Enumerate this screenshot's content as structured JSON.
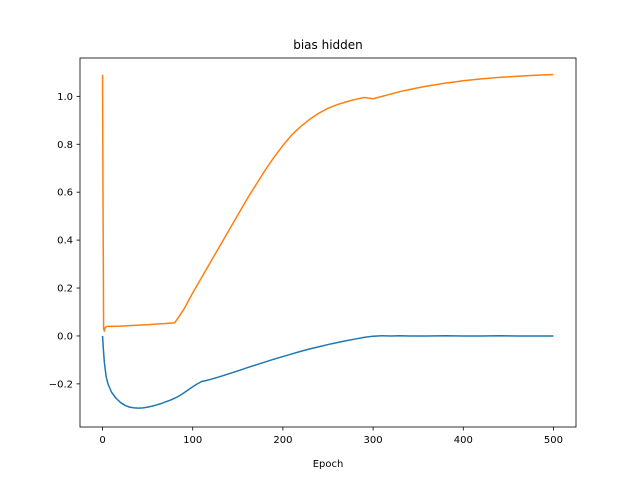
{
  "chart_data": {
    "type": "line",
    "title": "bias hidden",
    "xlabel": "Epoch",
    "ylabel": "",
    "xlim": [
      -25,
      525
    ],
    "ylim": [
      -0.38,
      1.16
    ],
    "xticks": [
      0,
      100,
      200,
      300,
      400,
      500
    ],
    "xtick_labels": [
      "0",
      "100",
      "200",
      "300",
      "400",
      "500"
    ],
    "yticks": [
      -0.2,
      0.0,
      0.2,
      0.4,
      0.6,
      0.8,
      1.0
    ],
    "ytick_labels": [
      "−0.2",
      "0.0",
      "0.2",
      "0.4",
      "0.6",
      "0.8",
      "1.0"
    ],
    "grid": false,
    "series": [
      {
        "color": "#1f77b4",
        "points": [
          [
            0,
            0.0
          ],
          [
            1,
            -0.06
          ],
          [
            2,
            -0.11
          ],
          [
            4,
            -0.17
          ],
          [
            6,
            -0.2
          ],
          [
            10,
            -0.235
          ],
          [
            15,
            -0.26
          ],
          [
            20,
            -0.278
          ],
          [
            25,
            -0.29
          ],
          [
            30,
            -0.297
          ],
          [
            35,
            -0.3
          ],
          [
            40,
            -0.301
          ],
          [
            45,
            -0.3
          ],
          [
            50,
            -0.297
          ],
          [
            55,
            -0.293
          ],
          [
            60,
            -0.288
          ],
          [
            65,
            -0.282
          ],
          [
            70,
            -0.275
          ],
          [
            75,
            -0.268
          ],
          [
            80,
            -0.26
          ],
          [
            85,
            -0.25
          ],
          [
            90,
            -0.238
          ],
          [
            95,
            -0.225
          ],
          [
            100,
            -0.212
          ],
          [
            105,
            -0.2
          ],
          [
            110,
            -0.19
          ],
          [
            115,
            -0.186
          ],
          [
            120,
            -0.181
          ],
          [
            130,
            -0.17
          ],
          [
            140,
            -0.158
          ],
          [
            150,
            -0.146
          ],
          [
            160,
            -0.133
          ],
          [
            170,
            -0.121
          ],
          [
            180,
            -0.109
          ],
          [
            190,
            -0.097
          ],
          [
            200,
            -0.086
          ],
          [
            210,
            -0.075
          ],
          [
            220,
            -0.064
          ],
          [
            230,
            -0.054
          ],
          [
            240,
            -0.045
          ],
          [
            250,
            -0.036
          ],
          [
            260,
            -0.028
          ],
          [
            270,
            -0.02
          ],
          [
            280,
            -0.013
          ],
          [
            290,
            -0.006
          ],
          [
            300,
            -0.001
          ],
          [
            310,
            0.001
          ],
          [
            320,
            0.0
          ],
          [
            330,
            0.001
          ],
          [
            340,
            0.0
          ],
          [
            360,
            0.0
          ],
          [
            380,
            0.001
          ],
          [
            400,
            0.0
          ],
          [
            420,
            0.0
          ],
          [
            440,
            0.001
          ],
          [
            460,
            0.0
          ],
          [
            480,
            0.0
          ],
          [
            500,
            0.0
          ]
        ]
      },
      {
        "color": "#ff7f0e",
        "points": [
          [
            0,
            1.09
          ],
          [
            0.6,
            0.5
          ],
          [
            1.2,
            0.03
          ],
          [
            2,
            0.02
          ],
          [
            3,
            0.035
          ],
          [
            5,
            0.04
          ],
          [
            10,
            0.04
          ],
          [
            20,
            0.041
          ],
          [
            30,
            0.043
          ],
          [
            40,
            0.045
          ],
          [
            50,
            0.047
          ],
          [
            60,
            0.05
          ],
          [
            70,
            0.052
          ],
          [
            80,
            0.055
          ],
          [
            90,
            0.11
          ],
          [
            100,
            0.18
          ],
          [
            110,
            0.245
          ],
          [
            120,
            0.31
          ],
          [
            130,
            0.375
          ],
          [
            140,
            0.44
          ],
          [
            150,
            0.505
          ],
          [
            160,
            0.57
          ],
          [
            170,
            0.63
          ],
          [
            180,
            0.69
          ],
          [
            190,
            0.745
          ],
          [
            200,
            0.795
          ],
          [
            210,
            0.84
          ],
          [
            220,
            0.875
          ],
          [
            230,
            0.905
          ],
          [
            240,
            0.93
          ],
          [
            250,
            0.95
          ],
          [
            260,
            0.965
          ],
          [
            270,
            0.977
          ],
          [
            280,
            0.987
          ],
          [
            290,
            0.995
          ],
          [
            300,
            0.99
          ],
          [
            310,
            1.0
          ],
          [
            320,
            1.01
          ],
          [
            330,
            1.02
          ],
          [
            340,
            1.028
          ],
          [
            350,
            1.036
          ],
          [
            360,
            1.043
          ],
          [
            370,
            1.049
          ],
          [
            380,
            1.055
          ],
          [
            390,
            1.06
          ],
          [
            400,
            1.065
          ],
          [
            420,
            1.073
          ],
          [
            440,
            1.079
          ],
          [
            460,
            1.084
          ],
          [
            480,
            1.088
          ],
          [
            500,
            1.091
          ]
        ]
      }
    ]
  }
}
